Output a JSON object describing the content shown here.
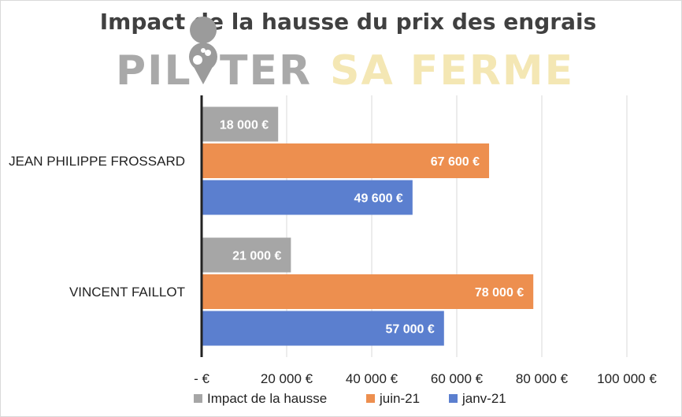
{
  "chart_data": {
    "type": "bar",
    "orientation": "horizontal",
    "title": "Impact de la hausse du prix des engrais",
    "watermark": {
      "part1": "PIL",
      "part2": "TER",
      "part3": "SA FERME"
    },
    "categories": [
      "JEAN PHILIPPE FROSSARD",
      "VINCENT FAILLOT"
    ],
    "series": [
      {
        "name": "Impact de la hausse",
        "color": "#a6a6a6",
        "values": [
          18000,
          21000
        ],
        "labels": [
          "18 000 €",
          "21 000 €"
        ]
      },
      {
        "name": "juin-21",
        "color": "#ed8f4f",
        "values": [
          67600,
          78000
        ],
        "labels": [
          "67 600 €",
          "78 000 €"
        ]
      },
      {
        "name": "janv-21",
        "color": "#5b7fcf",
        "values": [
          49600,
          57000
        ],
        "labels": [
          "49 600 €",
          "57 000 €"
        ]
      }
    ],
    "xlim": [
      0,
      100000
    ],
    "x_ticks": [
      0,
      20000,
      40000,
      60000,
      80000,
      100000
    ],
    "x_tick_labels": [
      "-   €",
      "20 000 €",
      "40 000 €",
      "60 000 €",
      "80 000 €",
      "100 000 €"
    ],
    "grid": true,
    "legend_position": "bottom"
  }
}
